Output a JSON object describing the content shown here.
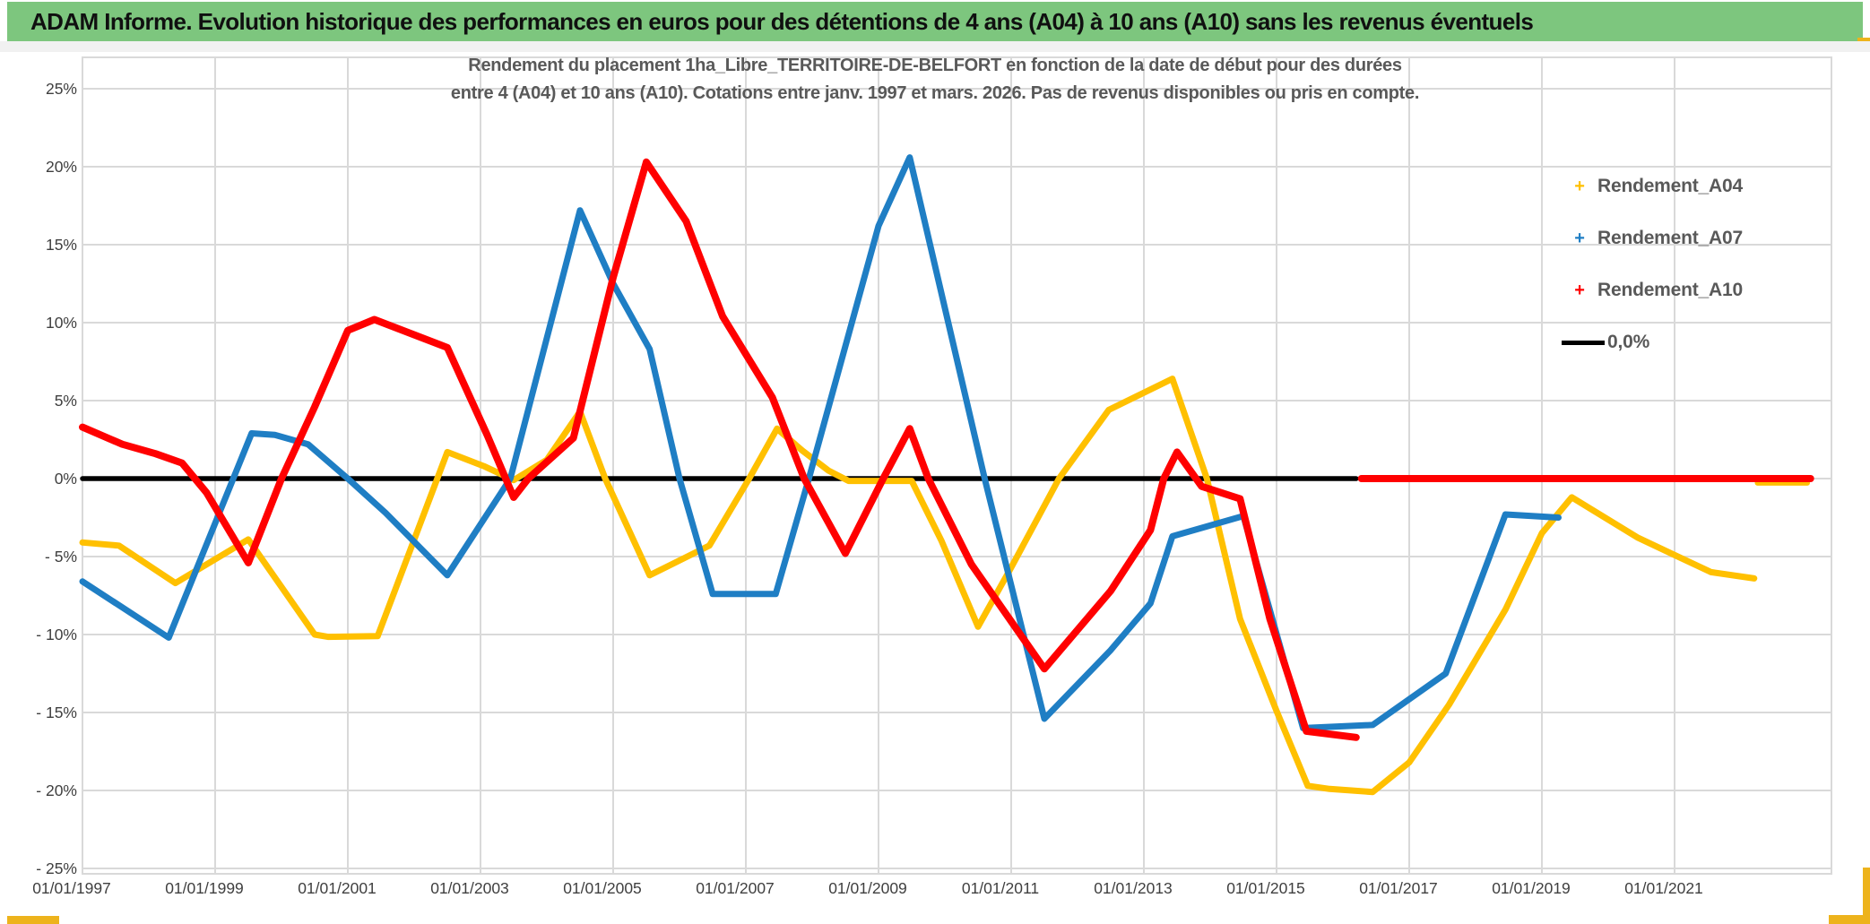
{
  "header": {
    "title": "ADAM Informe. Evolution historique des performances en euros pour des détentions de 4 ans (A04) à 10 ans (A10) sans les revenus éventuels"
  },
  "colors": {
    "header_green": "#7dc67e",
    "accent_gold": "#edb31c",
    "series_a04": "#FFC000",
    "series_a07": "#1f7ec4",
    "series_a10": "#ff0000",
    "reference_black": "#000000",
    "gridline": "#d9d9d9",
    "axis_text": "#3f3f3f",
    "subtitle_text": "#595959"
  },
  "chart_data": {
    "type": "line",
    "title_lines": [
      "Rendement du placement 1ha_Libre_TERRITOIRE-DE-BELFORT en fonction de la date de début pour des durées",
      "entre 4 (A04) et 10 ans (A10). Cotations entre janv. 1997 et mars. 2026. Pas de revenus disponibles ou pris en compte."
    ],
    "ylim": [
      -25,
      25
    ],
    "xlim_years": [
      1996.8,
      2023.4
    ],
    "grid": true,
    "legend_position": "right",
    "y_ticks": [
      {
        "v": 25,
        "label": "25%"
      },
      {
        "v": 20,
        "label": "20%"
      },
      {
        "v": 15,
        "label": "15%"
      },
      {
        "v": 10,
        "label": "10%"
      },
      {
        "v": 5,
        "label": "5%"
      },
      {
        "v": 0,
        "label": "0%"
      },
      {
        "v": -5,
        "label": "- 5%"
      },
      {
        "v": -10,
        "label": "- 10%"
      },
      {
        "v": -15,
        "label": "- 15%"
      },
      {
        "v": -20,
        "label": "- 20%"
      },
      {
        "v": -25,
        "label": "- 25%"
      }
    ],
    "x_ticks": [
      {
        "year": 1997,
        "label": "01/01/1997"
      },
      {
        "year": 1999,
        "label": "01/01/1999"
      },
      {
        "year": 2001,
        "label": "01/01/2001"
      },
      {
        "year": 2003,
        "label": "01/01/2003"
      },
      {
        "year": 2005,
        "label": "01/01/2005"
      },
      {
        "year": 2007,
        "label": "01/01/2007"
      },
      {
        "year": 2009,
        "label": "01/01/2009"
      },
      {
        "year": 2011,
        "label": "01/01/2011"
      },
      {
        "year": 2013,
        "label": "01/01/2013"
      },
      {
        "year": 2015,
        "label": "01/01/2015"
      },
      {
        "year": 2017,
        "label": "01/01/2017"
      },
      {
        "year": 2019,
        "label": "01/01/2019"
      },
      {
        "year": 2021,
        "label": "01/01/2021"
      }
    ],
    "legend": [
      {
        "label": "Rendement_A04",
        "color": "#FFC000",
        "marker": "+"
      },
      {
        "label": "Rendement_A07",
        "color": "#1f7ec4",
        "marker": "+"
      },
      {
        "label": "Rendement_A10",
        "color": "#ff0000",
        "marker": "+"
      },
      {
        "label": "0,0%",
        "color": "#000000",
        "marker": "line"
      }
    ],
    "series": [
      {
        "name": "reference-0,0%",
        "color": "#000000",
        "width": 5.5,
        "points": [
          [
            1997.0,
            0
          ],
          [
            2016.2,
            0
          ]
        ]
      },
      {
        "name": "Rendement_A04",
        "color": "#FFC000",
        "width": 7,
        "points": [
          [
            1997.0,
            -4.1
          ],
          [
            1997.55,
            -4.3
          ],
          [
            1998.4,
            -6.7
          ],
          [
            1999.5,
            -3.9
          ],
          [
            2000.5,
            -10.0
          ],
          [
            2000.7,
            -10.15
          ],
          [
            2001.45,
            -10.1
          ],
          [
            2002.5,
            1.7
          ],
          [
            2003.05,
            0.8
          ],
          [
            2003.5,
            -0.1
          ],
          [
            2004.0,
            1.2
          ],
          [
            2004.5,
            4.3
          ],
          [
            2004.88,
            0.0
          ],
          [
            2005.55,
            -6.2
          ],
          [
            2006.45,
            -4.3
          ],
          [
            2007.05,
            0.0
          ],
          [
            2007.47,
            3.2
          ],
          [
            2007.85,
            1.8
          ],
          [
            2008.25,
            0.5
          ],
          [
            2008.55,
            -0.15
          ],
          [
            2009.5,
            -0.15
          ],
          [
            2009.95,
            -4.0
          ],
          [
            2010.5,
            -9.5
          ],
          [
            2011.0,
            -5.7
          ],
          [
            2011.72,
            0.0
          ],
          [
            2012.47,
            4.4
          ],
          [
            2013.43,
            6.4
          ],
          [
            2013.95,
            0.0
          ],
          [
            2014.45,
            -9.0
          ],
          [
            2015.0,
            -14.9
          ],
          [
            2015.47,
            -19.7
          ],
          [
            2015.8,
            -19.9
          ],
          [
            2016.45,
            -20.1
          ],
          [
            2017.0,
            -18.2
          ],
          [
            2017.6,
            -14.5
          ],
          [
            2018.45,
            -8.4
          ],
          [
            2019.0,
            -3.5
          ],
          [
            2019.45,
            -1.2
          ],
          [
            2020.45,
            -3.8
          ],
          [
            2021.0,
            -4.9
          ],
          [
            2021.55,
            -6.0
          ],
          [
            2022.2,
            -6.4
          ]
        ]
      },
      {
        "name": "Rendement_A07",
        "color": "#1f7ec4",
        "width": 7,
        "points": [
          [
            1997.0,
            -6.6
          ],
          [
            1998.3,
            -10.2
          ],
          [
            1999.55,
            2.9
          ],
          [
            1999.9,
            2.8
          ],
          [
            2000.4,
            2.2
          ],
          [
            2001.0,
            0.0
          ],
          [
            2001.57,
            -2.2
          ],
          [
            2002.5,
            -6.2
          ],
          [
            2003.45,
            0.0
          ],
          [
            2004.5,
            17.2
          ],
          [
            2005.0,
            12.5
          ],
          [
            2005.55,
            8.3
          ],
          [
            2006.0,
            0.0
          ],
          [
            2006.5,
            -7.4
          ],
          [
            2007.45,
            -7.4
          ],
          [
            2007.95,
            0.0
          ],
          [
            2009.0,
            16.2
          ],
          [
            2009.47,
            20.6
          ],
          [
            2010.6,
            0.0
          ],
          [
            2011.5,
            -15.4
          ],
          [
            2012.5,
            -11.0
          ],
          [
            2013.1,
            -8.0
          ],
          [
            2013.43,
            -3.7
          ],
          [
            2014.5,
            -2.4
          ],
          [
            2015.4,
            -16.0
          ],
          [
            2016.45,
            -15.8
          ],
          [
            2017.55,
            -12.5
          ],
          [
            2018.45,
            -2.3
          ],
          [
            2019.25,
            -2.5
          ]
        ]
      },
      {
        "name": "Rendement_A10",
        "color": "#ff0000",
        "width": 8,
        "points": [
          [
            1997.0,
            3.3
          ],
          [
            1997.6,
            2.2
          ],
          [
            1998.1,
            1.6
          ],
          [
            1998.5,
            1.0
          ],
          [
            1998.87,
            -0.9
          ],
          [
            1999.5,
            -5.4
          ],
          [
            2000.0,
            0.0
          ],
          [
            2000.5,
            4.6
          ],
          [
            2001.0,
            9.5
          ],
          [
            2001.4,
            10.2
          ],
          [
            2002.5,
            8.4
          ],
          [
            2003.1,
            2.8
          ],
          [
            2003.5,
            -1.2
          ],
          [
            2003.72,
            0.0
          ],
          [
            2004.4,
            2.6
          ],
          [
            2005.0,
            12.9
          ],
          [
            2005.5,
            20.3
          ],
          [
            2006.1,
            16.5
          ],
          [
            2006.65,
            10.4
          ],
          [
            2007.4,
            5.2
          ],
          [
            2007.88,
            0.0
          ],
          [
            2008.5,
            -4.8
          ],
          [
            2009.07,
            0.0
          ],
          [
            2009.47,
            3.2
          ],
          [
            2009.75,
            0.0
          ],
          [
            2010.4,
            -5.5
          ],
          [
            2011.5,
            -12.2
          ],
          [
            2012.5,
            -7.2
          ],
          [
            2013.1,
            -3.3
          ],
          [
            2013.3,
            0.0
          ],
          [
            2013.5,
            1.7
          ],
          [
            2013.87,
            -0.5
          ],
          [
            2014.45,
            -1.3
          ],
          [
            2014.9,
            -9.0
          ],
          [
            2015.45,
            -16.2
          ],
          [
            2016.2,
            -16.6
          ]
        ]
      },
      {
        "name": "Rendement_A04-incomplete-zero",
        "color": "#FFC000",
        "width": 6,
        "points": [
          [
            2022.25,
            -0.28
          ],
          [
            2023.0,
            -0.28
          ]
        ]
      },
      {
        "name": "Rendement_A10-incomplete-zero",
        "color": "#ff0000",
        "width": 8,
        "points": [
          [
            2016.28,
            0
          ],
          [
            2023.05,
            0
          ]
        ]
      }
    ]
  }
}
